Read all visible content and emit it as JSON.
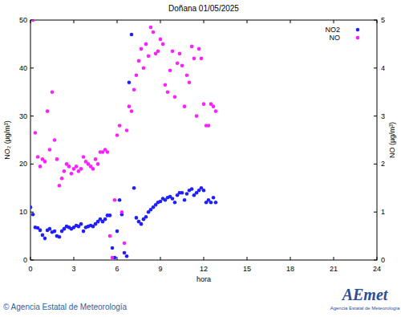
{
  "chart_data": {
    "type": "scatter",
    "title": "Doñana 01/05/2025",
    "x_label": "hora",
    "y_label": "NO₂ (µg/m³)",
    "y2_label": "NO (µg/m³)",
    "source": "© Agencia Estatal de Meteorología",
    "logo": "AEmet",
    "logo_subtitle": "Agencia Estatal de Meteorología",
    "xlim": [
      0,
      24
    ],
    "xticks": [
      0,
      3,
      6,
      9,
      12,
      15,
      18,
      21,
      24
    ],
    "ylim": [
      0,
      50
    ],
    "yticks": [
      0,
      10,
      20,
      30,
      40,
      50
    ],
    "y2lim": [
      0,
      5
    ],
    "y2ticks": [
      0,
      1,
      2,
      3,
      4,
      5
    ],
    "grid": false,
    "legend": "upper right",
    "x": [
      0,
      0.17,
      0.33,
      0.5,
      0.67,
      0.83,
      1,
      1.17,
      1.33,
      1.5,
      1.67,
      1.83,
      2,
      2.17,
      2.33,
      2.5,
      2.67,
      2.83,
      3,
      3.17,
      3.33,
      3.5,
      3.67,
      3.83,
      4,
      4.17,
      4.33,
      4.5,
      4.67,
      4.83,
      5,
      5.17,
      5.33,
      5.5,
      5.67,
      5.83,
      6,
      6.17,
      6.33,
      6.5,
      6.67,
      6.83,
      7,
      7.17,
      7.33,
      7.5,
      7.67,
      7.83,
      8,
      8.17,
      8.33,
      8.5,
      8.67,
      8.83,
      9,
      9.17,
      9.33,
      9.5,
      9.67,
      9.83,
      10,
      10.17,
      10.33,
      10.5,
      10.67,
      10.83,
      11,
      11.17,
      11.33,
      11.5,
      11.67,
      11.83,
      12,
      12.17,
      12.33,
      12.5,
      12.67,
      12.83
    ],
    "series": [
      {
        "name": "NO2",
        "color": "#1f1fff",
        "marker": "circle",
        "values": [
          11,
          9.5,
          6.8,
          6.7,
          6.2,
          5.2,
          4.5,
          6.2,
          6.5,
          5.8,
          6.0,
          5.0,
          4.8,
          6.0,
          6.5,
          7.0,
          6.8,
          6.5,
          6.8,
          7.2,
          7.0,
          7.5,
          6.0,
          6.8,
          7.0,
          7.2,
          7.0,
          7.5,
          8.0,
          8.5,
          8.0,
          8.5,
          9.3,
          9.3,
          2.5,
          0.5,
          6.0,
          12.5,
          9.5,
          1.5,
          0.8,
          37,
          47,
          15,
          8.8,
          8.0,
          7.5,
          8.5,
          9.0,
          10.0,
          10.5,
          11.0,
          11.5,
          12.0,
          12.2,
          12.8,
          12.5,
          13.0,
          13.2,
          12.8,
          12.0,
          13.5,
          14.0,
          14.0,
          12.5,
          13.8,
          14.5,
          14.8,
          13.5,
          14.0,
          14.5,
          15.0,
          14.5,
          12.0,
          12.5,
          12.0,
          13.0,
          12.0
        ]
      },
      {
        "name": "NO",
        "color": "#ff1fff",
        "marker": "circle",
        "axis": "y2",
        "values": [
          null,
          5.0,
          2.65,
          2.15,
          1.95,
          2.1,
          2.05,
          3.1,
          2.3,
          3.5,
          2.5,
          2.1,
          1.55,
          1.7,
          1.85,
          2.0,
          1.95,
          1.8,
          1.9,
          1.95,
          1.85,
          1.9,
          2.15,
          2.05,
          2.0,
          1.95,
          1.9,
          2.1,
          2.0,
          2.25,
          2.25,
          2.3,
          2.25,
          0.5,
          0.05,
          1.25,
          2.6,
          2.8,
          1.0,
          0.35,
          2.7,
          3.2,
          3.1,
          3.55,
          3.85,
          4.15,
          4.4,
          4.0,
          4.5,
          4.25,
          4.85,
          4.75,
          4.3,
          4.35,
          4.6,
          4.5,
          3.65,
          3.5,
          3.95,
          4.35,
          3.4,
          4.1,
          4.3,
          4.05,
          3.2,
          3.85,
          3.7,
          4.45,
          4.2,
          3.0,
          4.4,
          4.2,
          3.25,
          2.8,
          2.8,
          3.25,
          3.2,
          3.1
        ]
      }
    ]
  }
}
